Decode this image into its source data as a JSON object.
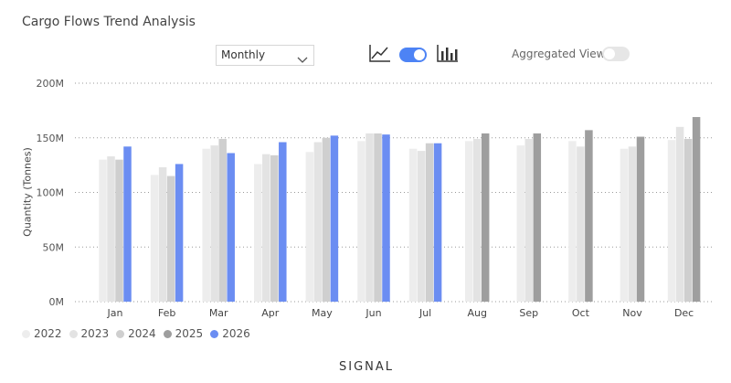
{
  "header": {
    "title": "Cargo Flows Trend Analysis"
  },
  "controls": {
    "period_select": "Monthly",
    "chart_type_toggle_on": true,
    "aggregated_label": "Aggregated View",
    "aggregated_on": false,
    "accent": "#4d83f5"
  },
  "brand": "SIGNAL",
  "icons": {
    "line": "line-chart-icon",
    "bar": "bar-chart-icon",
    "chevron": "chevron-down-icon"
  },
  "chart_data": {
    "type": "bar",
    "title": "Cargo Flows Trend Analysis",
    "ylabel": "Quantity (Tonnes)",
    "xlabel": "",
    "ylim": [
      0,
      200
    ],
    "yticks": [
      0,
      50,
      100,
      150,
      200
    ],
    "ytick_labels": [
      "0M",
      "50M",
      "100M",
      "150M",
      "200M"
    ],
    "grid": true,
    "legend_position": "bottom-left",
    "categories": [
      "Jan",
      "Feb",
      "Mar",
      "Apr",
      "May",
      "Jun",
      "Jul",
      "Aug",
      "Sep",
      "Oct",
      "Nov",
      "Dec"
    ],
    "series": [
      {
        "name": "2022",
        "color": "#ededed",
        "values": [
          130,
          116,
          140,
          126,
          137,
          147,
          140,
          147,
          143,
          147,
          140,
          148
        ]
      },
      {
        "name": "2023",
        "color": "#e3e3e3",
        "values": [
          133,
          123,
          143,
          135,
          146,
          154,
          138,
          149,
          149,
          142,
          142,
          160
        ]
      },
      {
        "name": "2024",
        "color": "#cfcfcf",
        "values": [
          130,
          115,
          149,
          134,
          150,
          154,
          145,
          null,
          null,
          null,
          null,
          149
        ]
      },
      {
        "name": "2025",
        "color": "#9e9e9e",
        "values": [
          null,
          null,
          null,
          null,
          null,
          null,
          null,
          154,
          154,
          157,
          151,
          169
        ]
      },
      {
        "name": "2026",
        "color": "#6b8df2",
        "values": [
          142,
          126,
          136,
          146,
          152,
          153,
          145,
          null,
          null,
          null,
          null,
          null
        ]
      }
    ]
  }
}
